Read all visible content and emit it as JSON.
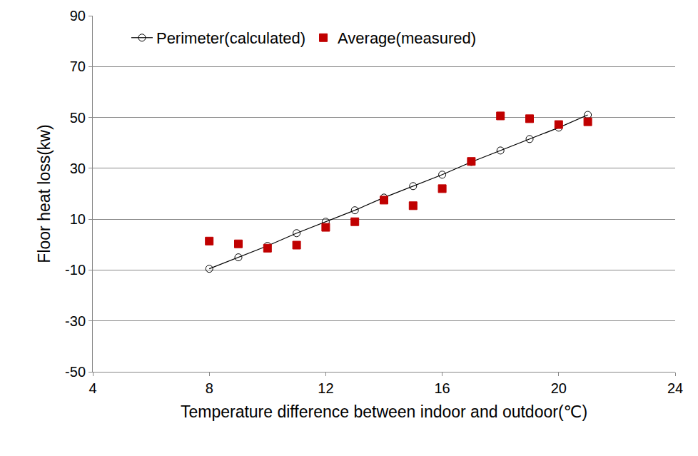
{
  "chart_data": {
    "type": "scatter",
    "x_label": "Temperature difference between indoor and outdoor(℃)",
    "y_label": "Floor heat loss(kw)",
    "xlim": [
      4,
      24
    ],
    "xticks": [
      4,
      8,
      12,
      16,
      20,
      24
    ],
    "ylim": [
      -50,
      90
    ],
    "yticks": [
      -50,
      -30,
      -10,
      10,
      30,
      50,
      70,
      90
    ],
    "grid": true,
    "legend": "upper left",
    "series": [
      {
        "name": "Perimeter(calculated)",
        "type": "line",
        "color": "#000000",
        "marker": "circle-open",
        "line_style": "solid",
        "x": [
          8,
          9,
          10,
          11,
          12,
          13,
          14,
          15,
          16,
          17,
          18,
          19,
          20,
          21
        ],
        "values": [
          -9.5,
          -5,
          -0.5,
          4.5,
          9,
          13.5,
          18.5,
          23,
          27.5,
          32.5,
          37,
          41.5,
          46,
          51
        ]
      },
      {
        "name": "Average(measured)",
        "type": "scatter",
        "color": "#c00000",
        "marker": "square",
        "x": [
          8,
          9,
          10,
          11,
          12,
          13,
          14,
          15,
          16,
          17,
          18,
          19,
          20,
          21
        ],
        "values": [
          1.4,
          0.3,
          -1.4,
          -0.2,
          6.8,
          9,
          17.5,
          15.3,
          22,
          32.7,
          50.6,
          49.5,
          47.2,
          48.3
        ]
      }
    ]
  }
}
